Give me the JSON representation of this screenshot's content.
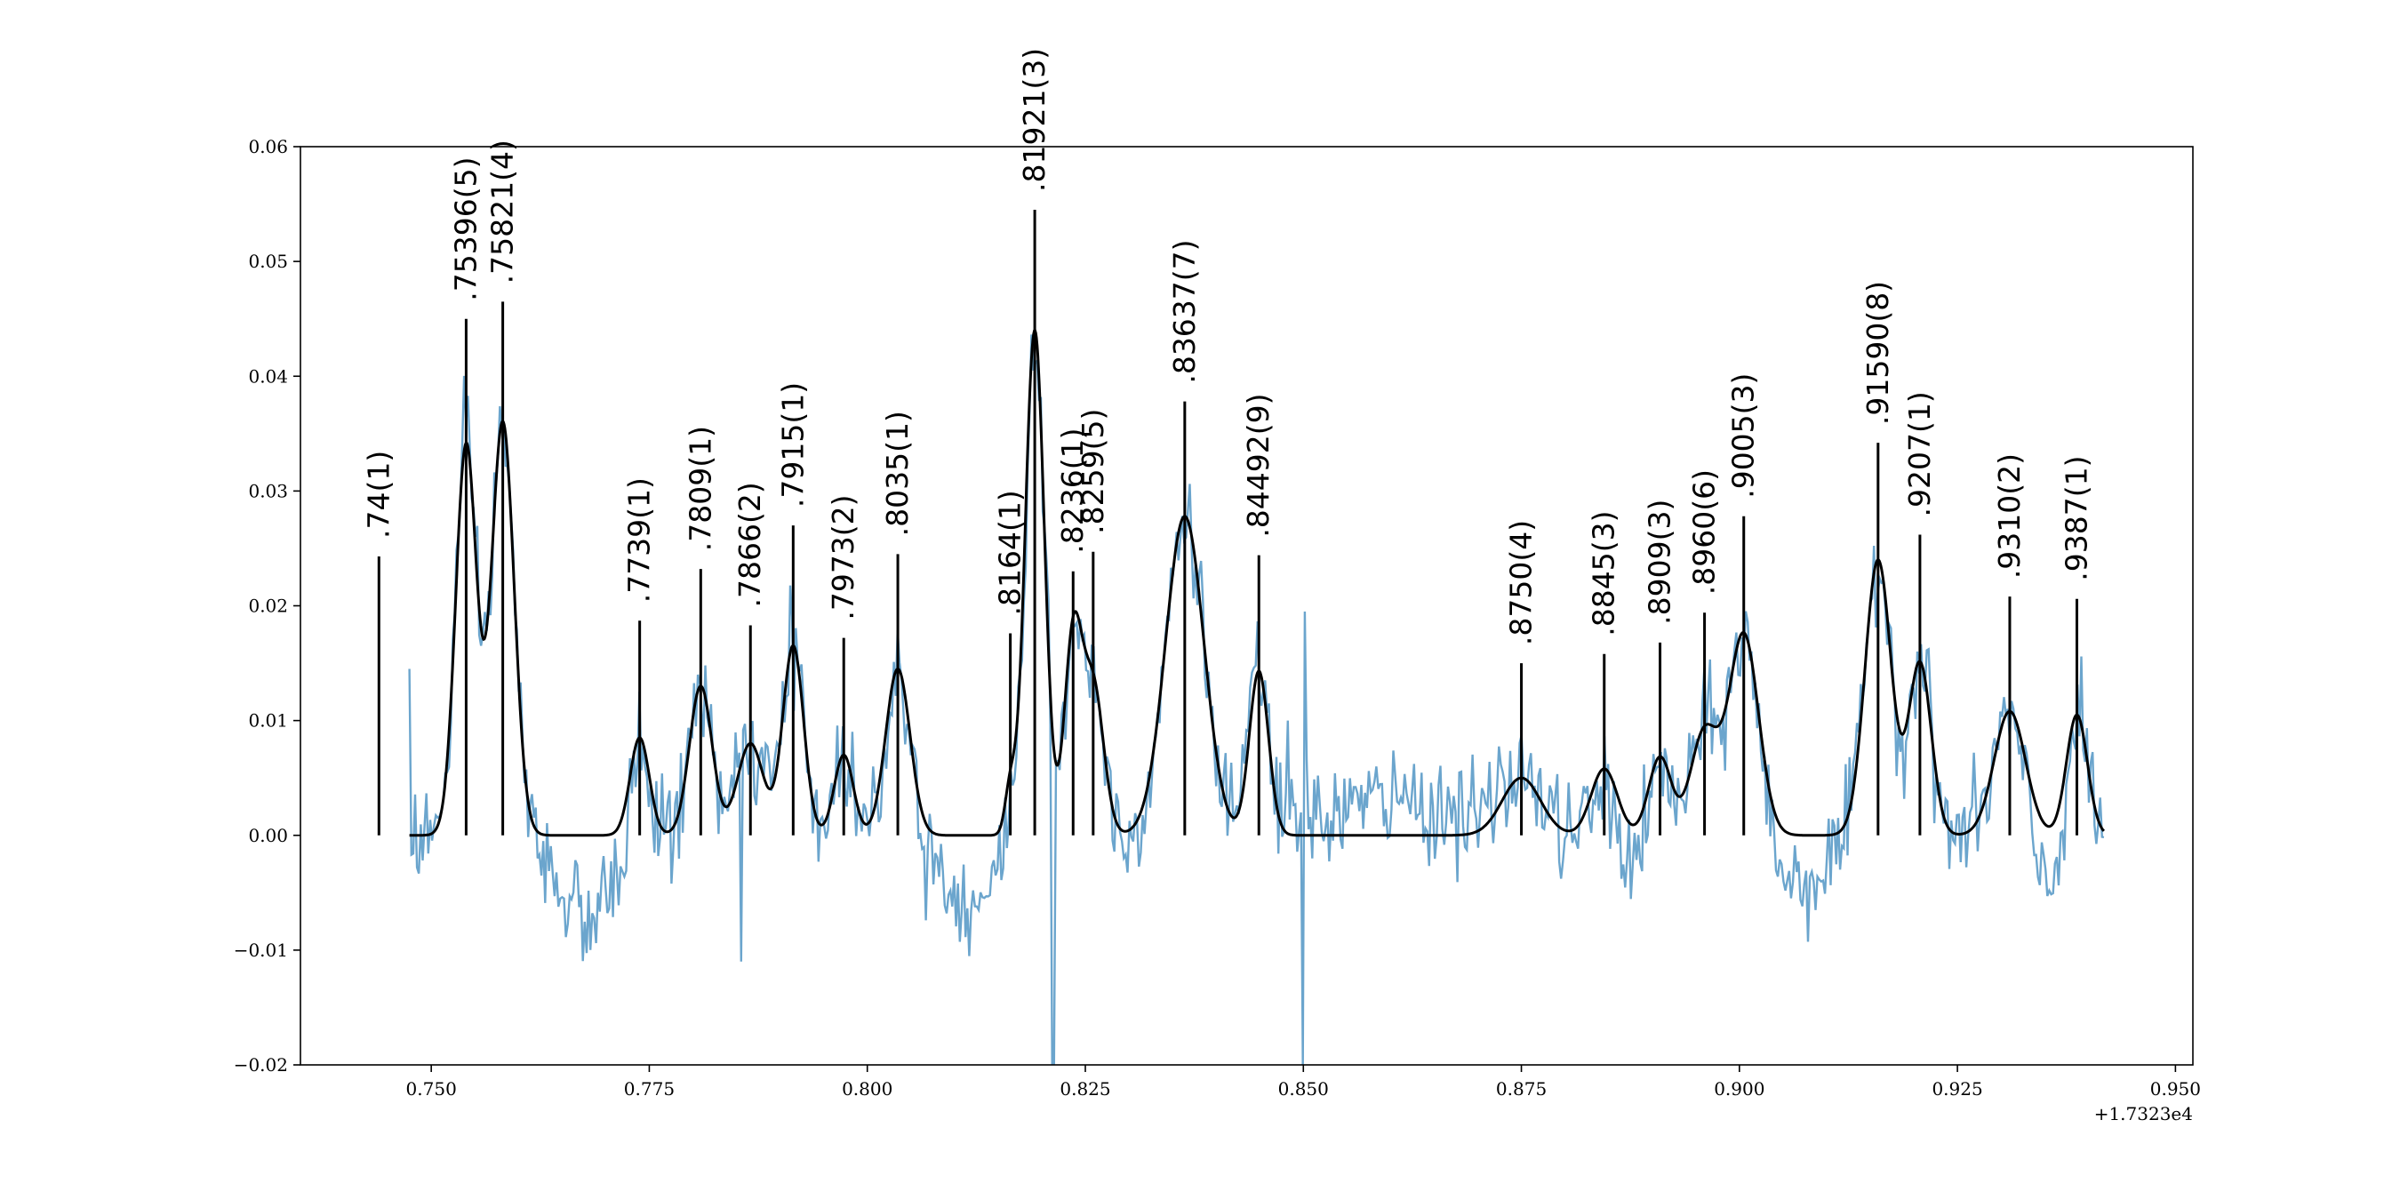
{
  "chart_data": {
    "type": "line",
    "title": "",
    "xlabel": "",
    "ylabel": "",
    "x_offset_label": "+1.7323e4",
    "xlim": [
      0.735,
      0.952
    ],
    "ylim": [
      -0.02,
      0.06
    ],
    "x_ticks": [
      {
        "value": 0.75,
        "label": "0.750"
      },
      {
        "value": 0.775,
        "label": "0.775"
      },
      {
        "value": 0.8,
        "label": "0.800"
      },
      {
        "value": 0.825,
        "label": "0.825"
      },
      {
        "value": 0.85,
        "label": "0.850"
      },
      {
        "value": 0.875,
        "label": "0.875"
      },
      {
        "value": 0.9,
        "label": "0.900"
      },
      {
        "value": 0.925,
        "label": "0.925"
      },
      {
        "value": 0.95,
        "label": "0.950"
      }
    ],
    "y_ticks": [
      {
        "value": -0.02,
        "label": "−0.02"
      },
      {
        "value": -0.01,
        "label": "−0.01"
      },
      {
        "value": 0.0,
        "label": "0.00"
      },
      {
        "value": 0.01,
        "label": "0.01"
      },
      {
        "value": 0.02,
        "label": "0.02"
      },
      {
        "value": 0.03,
        "label": "0.03"
      },
      {
        "value": 0.04,
        "label": "0.04"
      },
      {
        "value": 0.05,
        "label": "0.05"
      },
      {
        "value": 0.06,
        "label": "0.06"
      }
    ],
    "colors": {
      "data": "#5b9bc8",
      "fit": "#000000",
      "markers": "#000000"
    },
    "fit_peaks": [
      {
        "x": 0.754,
        "amp": 0.034,
        "width": 0.0012
      },
      {
        "x": 0.7582,
        "amp": 0.036,
        "width": 0.0013
      },
      {
        "x": 0.7739,
        "amp": 0.0085,
        "width": 0.0011
      },
      {
        "x": 0.7809,
        "amp": 0.013,
        "width": 0.0013
      },
      {
        "x": 0.7866,
        "amp": 0.008,
        "width": 0.0015
      },
      {
        "x": 0.7915,
        "amp": 0.0165,
        "width": 0.0012
      },
      {
        "x": 0.7973,
        "amp": 0.007,
        "width": 0.0011
      },
      {
        "x": 0.8035,
        "amp": 0.0145,
        "width": 0.0014
      },
      {
        "x": 0.8164,
        "amp": 0.004,
        "width": 0.0006
      },
      {
        "x": 0.8192,
        "amp": 0.044,
        "width": 0.0011
      },
      {
        "x": 0.8236,
        "amp": 0.017,
        "width": 0.001
      },
      {
        "x": 0.8259,
        "amp": 0.013,
        "width": 0.0012
      },
      {
        "x": 0.8364,
        "amp": 0.0278,
        "width": 0.0022
      },
      {
        "x": 0.8449,
        "amp": 0.0143,
        "width": 0.0011
      },
      {
        "x": 0.875,
        "amp": 0.005,
        "width": 0.0022
      },
      {
        "x": 0.8845,
        "amp": 0.0058,
        "width": 0.0015
      },
      {
        "x": 0.8909,
        "amp": 0.0068,
        "width": 0.0013
      },
      {
        "x": 0.896,
        "amp": 0.009,
        "width": 0.0016
      },
      {
        "x": 0.9005,
        "amp": 0.0175,
        "width": 0.0017
      },
      {
        "x": 0.9159,
        "amp": 0.024,
        "width": 0.0015
      },
      {
        "x": 0.9207,
        "amp": 0.015,
        "width": 0.0013
      },
      {
        "x": 0.931,
        "amp": 0.0108,
        "width": 0.0018
      },
      {
        "x": 0.9387,
        "amp": 0.0105,
        "width": 0.0012
      }
    ],
    "peak_markers": [
      {
        "x": 0.744,
        "height": 0.0243,
        "label": ".74(1)"
      },
      {
        "x": 0.754,
        "height": 0.045,
        "label": ".75396(5)"
      },
      {
        "x": 0.7582,
        "height": 0.0465,
        "label": ".75821(4)"
      },
      {
        "x": 0.7739,
        "height": 0.0187,
        "label": ".7739(1)"
      },
      {
        "x": 0.7809,
        "height": 0.0232,
        "label": ".7809(1)"
      },
      {
        "x": 0.7866,
        "height": 0.0183,
        "label": ".7866(2)"
      },
      {
        "x": 0.7915,
        "height": 0.027,
        "label": ".7915(1)"
      },
      {
        "x": 0.7973,
        "height": 0.0172,
        "label": ".7973(2)"
      },
      {
        "x": 0.8035,
        "height": 0.0245,
        "label": ".8035(1)"
      },
      {
        "x": 0.8164,
        "height": 0.0176,
        "label": ".8164(1)"
      },
      {
        "x": 0.8192,
        "height": 0.0545,
        "label": ".81921(3)"
      },
      {
        "x": 0.8236,
        "height": 0.023,
        "label": ".8236(1)"
      },
      {
        "x": 0.8259,
        "height": 0.0247,
        "label": ".8259(5)"
      },
      {
        "x": 0.8364,
        "height": 0.0378,
        "label": ".83637(7)"
      },
      {
        "x": 0.8449,
        "height": 0.0244,
        "label": ".84492(9)"
      },
      {
        "x": 0.875,
        "height": 0.015,
        "label": ".8750(4)"
      },
      {
        "x": 0.8845,
        "height": 0.0158,
        "label": ".8845(3)"
      },
      {
        "x": 0.8909,
        "height": 0.0168,
        "label": ".8909(3)"
      },
      {
        "x": 0.896,
        "height": 0.0194,
        "label": ".8960(6)"
      },
      {
        "x": 0.9005,
        "height": 0.0278,
        "label": ".9005(3)"
      },
      {
        "x": 0.9159,
        "height": 0.0342,
        "label": ".91590(8)"
      },
      {
        "x": 0.9207,
        "height": 0.0262,
        "label": ".9207(1)"
      },
      {
        "x": 0.931,
        "height": 0.0208,
        "label": ".9310(2)"
      },
      {
        "x": 0.9387,
        "height": 0.0206,
        "label": ".9387(1)"
      }
    ],
    "noisy_data": {
      "x_range": [
        0.7475,
        0.9418
      ],
      "n_points": 900,
      "noise_std": 0.0022,
      "baseline_dips": [
        {
          "x": 0.768,
          "depth": -0.0075,
          "width": 0.003
        },
        {
          "x": 0.812,
          "depth": -0.006,
          "width": 0.003
        },
        {
          "x": 0.86,
          "depth": 0.003,
          "width": 0.008
        },
        {
          "x": 0.887,
          "depth": -0.003,
          "width": 0.003
        },
        {
          "x": 0.907,
          "depth": -0.004,
          "width": 0.003
        },
        {
          "x": 0.935,
          "depth": -0.005,
          "width": 0.002
        }
      ],
      "spikes": [
        {
          "x": 0.8213,
          "value": -0.02
        },
        {
          "x": 0.85,
          "value": -0.02
        },
        {
          "x": 0.8483,
          "value": 0.01
        },
        {
          "x": 0.8502,
          "value": 0.0195
        },
        {
          "x": 0.7855,
          "value": -0.011
        },
        {
          "x": 0.7475,
          "value": 0.0145
        }
      ]
    }
  }
}
